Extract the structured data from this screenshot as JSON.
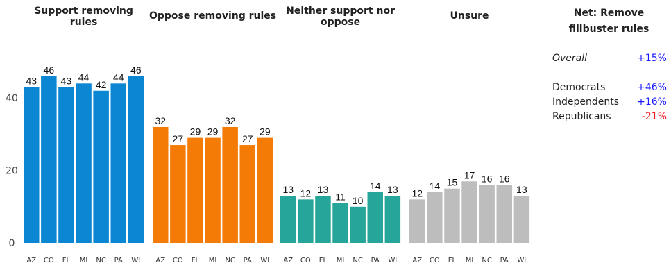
{
  "chart_data": {
    "type": "bar",
    "yticks": [
      0,
      20,
      40
    ],
    "ylim": [
      0,
      48
    ],
    "categories": [
      "AZ",
      "CO",
      "FL",
      "MI",
      "NC",
      "PA",
      "WI"
    ],
    "panels": [
      {
        "title_lines": [
          "Support removing",
          "rules"
        ],
        "color": "#0a86d2",
        "values": [
          43,
          46,
          43,
          44,
          42,
          44,
          46
        ]
      },
      {
        "title_lines": [
          "Oppose removing rules"
        ],
        "color": "#f47c06",
        "values": [
          32,
          27,
          29,
          29,
          32,
          27,
          29
        ]
      },
      {
        "title_lines": [
          "Neither support nor",
          "oppose"
        ],
        "color": "#26a69a",
        "values": [
          13,
          12,
          13,
          11,
          10,
          14,
          13
        ]
      },
      {
        "title_lines": [
          "Unsure"
        ],
        "color": "#bdbdbd",
        "values": [
          12,
          14,
          15,
          17,
          16,
          16,
          13
        ]
      }
    ]
  },
  "net": {
    "title_line1": "Net: Remove",
    "title_line2": "filibuster rules",
    "overall": {
      "label": "Overall",
      "value": "+15%",
      "color": "#1a1aff"
    },
    "groups": [
      {
        "label": "Democrats",
        "value": "+46%",
        "color": "#1a1aff"
      },
      {
        "label": "Independents",
        "value": "+16%",
        "color": "#1a1aff"
      },
      {
        "label": "Republicans",
        "value": "-21%",
        "color": "#ee1c25"
      }
    ]
  }
}
